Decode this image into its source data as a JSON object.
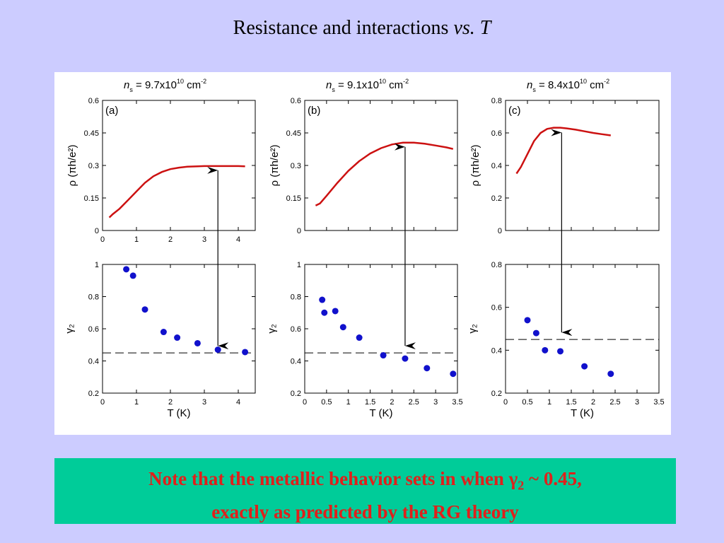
{
  "slide": {
    "title_main": "Resistance and interactions ",
    "title_italic": "vs. T"
  },
  "note": {
    "line1_pre": "Note that the metallic behavior sets in when ",
    "gamma": "γ",
    "gamma_sub": "2",
    "line1_post": " ~ 0.45,",
    "line2": "exactly as predicted by the RG theory"
  },
  "colors": {
    "curve": "#cc1111",
    "points": "#1111cc",
    "note_bg": "#00cc99",
    "note_text": "#e0201b",
    "page_bg": "#ccccff"
  },
  "chart_data": [
    {
      "panel": "(a)",
      "header": {
        "n": "n",
        "sub": "s",
        "value": " = 9.7x10",
        "exp": "10",
        "unit": " cm",
        "unit_exp": "-2"
      },
      "top": {
        "type": "line",
        "ylabel": "ρ (πh/e²)",
        "xlim": [
          0,
          4.5
        ],
        "ylim": [
          0,
          0.6
        ],
        "xticks": [
          0,
          1,
          2,
          3,
          4
        ],
        "yticks": [
          0,
          0.15,
          0.3,
          0.45,
          0.6
        ],
        "xtick_labels": [
          "0",
          "1",
          "2",
          "3",
          "4"
        ],
        "ytick_labels": [
          "0",
          "0.15",
          "0.3",
          "0.45",
          "0.6"
        ],
        "series": [
          {
            "x": [
              0.2,
              0.3,
              0.5,
              0.75,
              1.0,
              1.25,
              1.5,
              1.75,
              2.0,
              2.25,
              2.5,
              2.8,
              3.0,
              3.5,
              4.0,
              4.2
            ],
            "y": [
              0.06,
              0.075,
              0.1,
              0.14,
              0.18,
              0.22,
              0.25,
              0.27,
              0.283,
              0.29,
              0.294,
              0.296,
              0.297,
              0.297,
              0.297,
              0.296
            ]
          }
        ]
      },
      "bottom": {
        "type": "scatter",
        "ylabel": "γ₂",
        "xlabel": "T (K)",
        "xlim": [
          0,
          4.5
        ],
        "ylim": [
          0.2,
          1.0
        ],
        "xticks": [
          0,
          1,
          2,
          3,
          4
        ],
        "yticks": [
          0.2,
          0.4,
          0.6,
          0.8,
          1.0
        ],
        "xtick_labels": [
          "0",
          "1",
          "2",
          "3",
          "4"
        ],
        "ytick_labels": [
          "0.2",
          "0.4",
          "0.6",
          "0.8",
          "1"
        ],
        "x": [
          0.7,
          0.9,
          1.25,
          1.8,
          2.2,
          2.8,
          3.4,
          4.2
        ],
        "y": [
          0.97,
          0.93,
          0.72,
          0.58,
          0.545,
          0.51,
          0.47,
          0.455
        ],
        "hline": 0.45
      },
      "arrow_x": 3.4
    },
    {
      "panel": "(b)",
      "header": {
        "n": "n",
        "sub": "s",
        "value": " = 9.1x10",
        "exp": "10",
        "unit": " cm",
        "unit_exp": "-2"
      },
      "top": {
        "type": "line",
        "ylabel": "ρ (πh/e²)",
        "xlim": [
          0,
          3.5
        ],
        "ylim": [
          0,
          0.6
        ],
        "xticks": [
          0,
          0.5,
          1,
          1.5,
          2,
          2.5,
          3,
          3.5
        ],
        "yticks": [
          0,
          0.15,
          0.3,
          0.45,
          0.6
        ],
        "xtick_labels": [],
        "ytick_labels": [
          "0",
          "0.15",
          "0.3",
          "0.45",
          "0.6"
        ],
        "series": [
          {
            "x": [
              0.25,
              0.35,
              0.5,
              0.75,
              1.0,
              1.25,
              1.5,
              1.75,
              2.0,
              2.25,
              2.5,
              2.75,
              3.0,
              3.25,
              3.4
            ],
            "y": [
              0.115,
              0.125,
              0.16,
              0.22,
              0.275,
              0.32,
              0.355,
              0.38,
              0.397,
              0.405,
              0.405,
              0.4,
              0.392,
              0.383,
              0.376
            ]
          }
        ]
      },
      "bottom": {
        "type": "scatter",
        "ylabel": "γ₂",
        "xlabel": "T (K)",
        "xlim": [
          0,
          3.5
        ],
        "ylim": [
          0.2,
          1.0
        ],
        "xticks": [
          0,
          0.5,
          1,
          1.5,
          2,
          2.5,
          3,
          3.5
        ],
        "yticks": [
          0.2,
          0.4,
          0.6,
          0.8,
          1.0
        ],
        "xtick_labels": [
          "0",
          "0.5",
          "1",
          "1.5",
          "2",
          "2.5",
          "3",
          "3.5"
        ],
        "ytick_labels": [
          "0.2",
          "0.4",
          "0.6",
          "0.8",
          "1"
        ],
        "x": [
          0.4,
          0.45,
          0.7,
          0.88,
          1.25,
          1.8,
          2.3,
          2.8,
          3.4
        ],
        "y": [
          0.78,
          0.7,
          0.71,
          0.61,
          0.545,
          0.435,
          0.415,
          0.355,
          0.32
        ],
        "hline": 0.45
      },
      "arrow_x": 2.3
    },
    {
      "panel": "(c)",
      "header": {
        "n": "n",
        "sub": "s",
        "value": " = 8.4x10",
        "exp": "10",
        "unit": " cm",
        "unit_exp": "-2"
      },
      "top": {
        "type": "line",
        "ylabel": "ρ (πh/e²)",
        "xlim": [
          0,
          3.5
        ],
        "ylim": [
          0,
          0.8
        ],
        "xticks": [
          0,
          0.5,
          1,
          1.5,
          2,
          2.5,
          3,
          3.5
        ],
        "yticks": [
          0,
          0.2,
          0.4,
          0.6,
          0.8
        ],
        "xtick_labels": [],
        "ytick_labels": [
          "0",
          "0.2",
          "0.4",
          "0.6",
          "0.8"
        ],
        "series": [
          {
            "x": [
              0.25,
              0.35,
              0.5,
              0.65,
              0.8,
              0.95,
              1.1,
              1.25,
              1.4,
              1.6,
              1.8,
              2.0,
              2.2,
              2.4
            ],
            "y": [
              0.35,
              0.39,
              0.47,
              0.55,
              0.6,
              0.625,
              0.632,
              0.632,
              0.628,
              0.62,
              0.61,
              0.6,
              0.592,
              0.585
            ]
          }
        ]
      },
      "bottom": {
        "type": "scatter",
        "ylabel": "γ₂",
        "xlabel": "T (K)",
        "xlim": [
          0,
          3.5
        ],
        "ylim": [
          0.2,
          0.8
        ],
        "xticks": [
          0,
          0.5,
          1,
          1.5,
          2,
          2.5,
          3,
          3.5
        ],
        "yticks": [
          0.2,
          0.4,
          0.6,
          0.8
        ],
        "xtick_labels": [
          "0",
          "0.5",
          "1",
          "1.5",
          "2",
          "2.5",
          "3",
          "3.5"
        ],
        "ytick_labels": [
          "0.2",
          "0.4",
          "0.6",
          "0.8"
        ],
        "x": [
          0.5,
          0.7,
          0.9,
          1.25,
          1.8,
          2.4
        ],
        "y": [
          0.54,
          0.48,
          0.4,
          0.395,
          0.325,
          0.29
        ],
        "hline": 0.45
      },
      "arrow_x": 1.28
    }
  ]
}
